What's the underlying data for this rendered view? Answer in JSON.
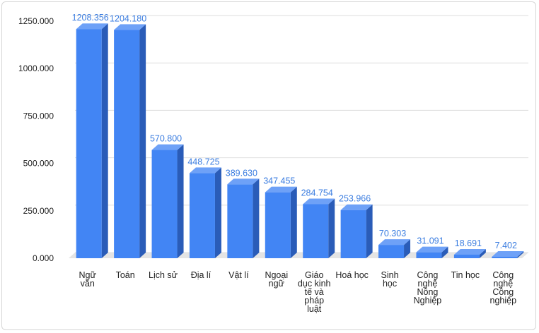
{
  "chart_data": {
    "type": "bar",
    "categories": [
      "Ngữ văn",
      "Toán",
      "Lịch sử",
      "Địa lí",
      "Vật lí",
      "Ngoại ngữ",
      "Giáo dục kinh tế và pháp luật",
      "Hoá học",
      "Sinh học",
      "Công nghệ Nông Nghiệp",
      "Tin học",
      "Công nghệ Công nghiệp"
    ],
    "category_lines": [
      [
        "Ngữ",
        "văn"
      ],
      [
        "Toán"
      ],
      [
        "Lịch sử"
      ],
      [
        "Địa lí"
      ],
      [
        "Vật lí"
      ],
      [
        "Ngoại",
        "ngữ"
      ],
      [
        "Giáo",
        "dục kinh",
        "tế và",
        "pháp",
        "luật"
      ],
      [
        "Hoá học"
      ],
      [
        "Sinh",
        "học"
      ],
      [
        "Công",
        "nghệ",
        "Nông",
        "Nghiệp"
      ],
      [
        "Tin học"
      ],
      [
        "Công",
        "nghệ",
        "Công",
        "nghiệp"
      ]
    ],
    "values": [
      1208.356,
      1204.18,
      570.8,
      448.725,
      389.63,
      347.455,
      284.754,
      253.966,
      70.303,
      31.091,
      18.691,
      7.402
    ],
    "value_labels": [
      "1208.356",
      "1204.180",
      "570.800",
      "448.725",
      "389.630",
      "347.455",
      "284.754",
      "253.966",
      "70.303",
      "31.091",
      "18.691",
      "7.402"
    ],
    "y_ticks": [
      0,
      250,
      500,
      750,
      1000,
      1250
    ],
    "y_tick_labels": [
      "0.000",
      "250.000",
      "500.000",
      "750.000",
      "1000.000",
      "1250.000"
    ],
    "ylim": [
      0,
      1250
    ],
    "grid": true,
    "title": "",
    "xlabel": "",
    "ylabel": "",
    "colors": {
      "bar_front": "#4285f4",
      "bar_side": "#2a5cb8",
      "bar_top": "#6ea1f7",
      "floor": "#e4e4e4",
      "label": "#3b7de0",
      "grid": "#dddddd"
    }
  }
}
